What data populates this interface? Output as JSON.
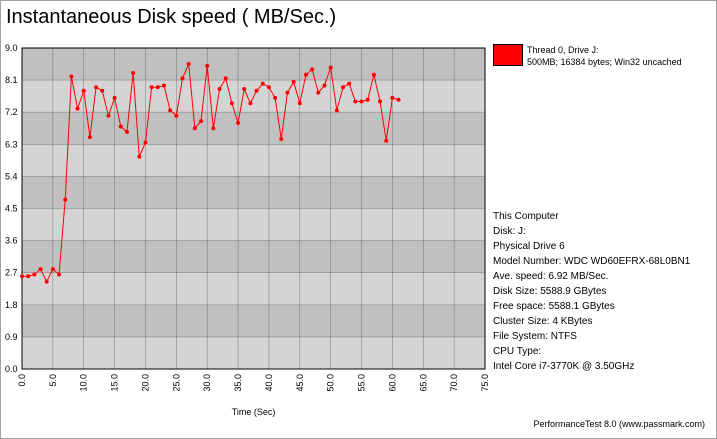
{
  "title": "Instantaneous Disk speed ( MB/Sec.)",
  "legend": {
    "color": "#ff0000",
    "line1": "Thread 0, Drive J:",
    "line2": "500MB; 16384 bytes; Win32 uncached"
  },
  "info": [
    "This Computer",
    "Disk: J:",
    "Physical Drive 6",
    "Model Number: WDC WD60EFRX-68L0BN1",
    "Ave. speed: 6.92 MB/Sec.",
    "Disk Size: 5588.9 GBytes",
    "Free space: 5588.1 GBytes",
    "Cluster Size: 4 KBytes",
    "File System: NTFS",
    "CPU Type:",
    "Intel Core i7-3770K @ 3.50GHz"
  ],
  "footer": "PerformanceTest 8.0 (www.passmark.com)",
  "chart_data": {
    "type": "line",
    "xlabel": "Time (Sec)",
    "ylabel": "",
    "xlim": [
      0,
      75
    ],
    "ylim": [
      0,
      9
    ],
    "x_ticks": [
      "0.0",
      "5.0",
      "10.0",
      "15.0",
      "20.0",
      "25.0",
      "30.0",
      "35.0",
      "40.0",
      "45.0",
      "50.0",
      "55.0",
      "60.0",
      "65.0",
      "70.0",
      "75.0"
    ],
    "y_ticks": [
      "0.0",
      "0.9",
      "1.8",
      "2.7",
      "3.6",
      "4.5",
      "5.4",
      "6.3",
      "7.2",
      "8.1",
      "9.0"
    ],
    "grid": true,
    "series_color": "#ff0000",
    "background_bands": [
      "#d4d4d4",
      "#c0c0c0"
    ],
    "series": [
      {
        "name": "Thread 0, Drive J:",
        "x": [
          0,
          1,
          2,
          3,
          4,
          5,
          6,
          7,
          8,
          9,
          10,
          11,
          12,
          13,
          14,
          15,
          16,
          17,
          18,
          19,
          20,
          21,
          22,
          23,
          24,
          25,
          26,
          27,
          28,
          29,
          30,
          31,
          32,
          33,
          34,
          35,
          36,
          37,
          38,
          39,
          40,
          41,
          42,
          43,
          44,
          45,
          46,
          47,
          48,
          49,
          50,
          51,
          52,
          53,
          54,
          55,
          56,
          57,
          58,
          59,
          60,
          61
        ],
        "values": [
          2.6,
          2.6,
          2.65,
          2.8,
          2.45,
          2.8,
          2.65,
          4.75,
          8.2,
          7.3,
          7.8,
          6.5,
          7.9,
          7.8,
          7.1,
          7.6,
          6.8,
          6.65,
          8.3,
          5.95,
          6.35,
          7.9,
          7.9,
          7.95,
          7.25,
          7.1,
          8.15,
          8.55,
          6.75,
          6.95,
          8.5,
          6.75,
          7.85,
          8.15,
          7.45,
          6.9,
          7.85,
          7.45,
          7.8,
          8.0,
          7.9,
          7.6,
          6.45,
          7.75,
          8.05,
          7.45,
          8.25,
          8.4,
          7.75,
          7.95,
          8.45,
          7.25,
          7.9,
          8.0,
          7.5,
          7.5,
          7.55,
          8.25,
          7.5,
          6.4,
          7.6,
          7.55
        ]
      }
    ]
  }
}
